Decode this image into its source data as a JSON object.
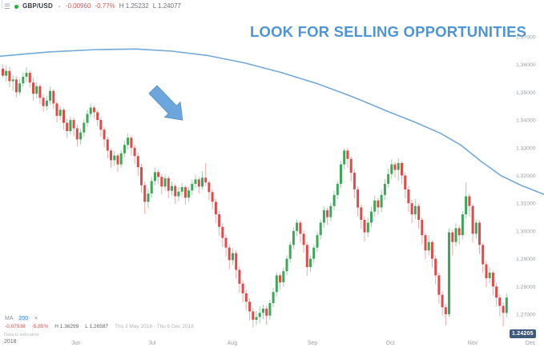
{
  "icons": {
    "menu": "☰",
    "chevron_down": "⌄",
    "close": "✕"
  },
  "header": {
    "symbol": "GBP/USD",
    "change": "-0.00960",
    "change_pct": "-0.77%",
    "session_high": "H 1.25232",
    "session_low": "L 1.24077"
  },
  "annotation": {
    "title": "LOOK FOR SELLING OPPORTUNITIES",
    "arrow_direction": "down-right"
  },
  "indicator_legend": {
    "name": "MA",
    "period": "200",
    "change": "-0.07938",
    "change_pct": "-5.85%",
    "range_high": "H 1.36299",
    "range_low": "L 1.26587",
    "date_range": "Thu 3 May 2018 - Thu 6 Dec 2018"
  },
  "price_badge": "1.24205",
  "footnote": "Data is indicative",
  "colors": {
    "bull": "#3ba758",
    "bear": "#e24a4a",
    "bull_wick": "#9bd2a4",
    "bear_wick": "#f2a6a8",
    "ma_line": "#72a9d8",
    "accent_blue": "#4f94d4",
    "arrow_fill": "#6ca6dd",
    "arrow_stroke": "#5d95c8",
    "badge_bg": "#3f5a7d",
    "axis_text": "#9ba1a8",
    "negative_text": "#e25050"
  },
  "x_axis": {
    "year": "2018",
    "months": [
      {
        "label": "Jun",
        "x": 95
      },
      {
        "label": "Jul",
        "x": 190
      },
      {
        "label": "Aug",
        "x": 290
      },
      {
        "label": "Sep",
        "x": 390
      },
      {
        "label": "Oct",
        "x": 487
      },
      {
        "label": "Nov",
        "x": 590
      },
      {
        "label": "Dec",
        "x": 662
      }
    ]
  },
  "y_axis": {
    "ticks": [
      {
        "label": "1.37000",
        "value": 1.37
      },
      {
        "label": "1.36000",
        "value": 1.36
      },
      {
        "label": "1.35000",
        "value": 1.35
      },
      {
        "label": "1.34000",
        "value": 1.34
      },
      {
        "label": "1.33000",
        "value": 1.33
      },
      {
        "label": "1.32000",
        "value": 1.32
      },
      {
        "label": "1.31000",
        "value": 1.31
      },
      {
        "label": "1.30000",
        "value": 1.3
      },
      {
        "label": "1.29000",
        "value": 1.29
      },
      {
        "label": "1.28000",
        "value": 1.28
      },
      {
        "label": "1.27000",
        "value": 1.27
      }
    ]
  },
  "chart_data": {
    "type": "candlestick",
    "symbol": "GBP/USD",
    "timeframe": "daily",
    "visible_range": "3 May 2018 - 6 Dec 2018",
    "ylim": [
      1.2625,
      1.3755
    ],
    "grid": false,
    "mapping": {
      "y_top": 46,
      "y_bottom": 393,
      "price_top": 1.37,
      "price_bottom": 1.27,
      "x0": 2,
      "dx": 4.22,
      "body_w": 3
    },
    "candles": [
      [
        1.3585,
        1.36,
        1.3552,
        1.356
      ],
      [
        1.356,
        1.3598,
        1.354,
        1.3577
      ],
      [
        1.3577,
        1.3592,
        1.3518,
        1.354
      ],
      [
        1.354,
        1.3562,
        1.3505,
        1.3546
      ],
      [
        1.3546,
        1.3558,
        1.3482,
        1.35
      ],
      [
        1.35,
        1.3548,
        1.349,
        1.3532
      ],
      [
        1.3532,
        1.3572,
        1.352,
        1.3556
      ],
      [
        1.3556,
        1.359,
        1.3538,
        1.357
      ],
      [
        1.357,
        1.3578,
        1.3516,
        1.3535
      ],
      [
        1.3535,
        1.3552,
        1.347,
        1.3495
      ],
      [
        1.3495,
        1.3536,
        1.3478,
        1.3522
      ],
      [
        1.3522,
        1.353,
        1.3458,
        1.348
      ],
      [
        1.348,
        1.3492,
        1.343,
        1.345
      ],
      [
        1.345,
        1.3488,
        1.3435,
        1.347
      ],
      [
        1.347,
        1.352,
        1.3455,
        1.3505
      ],
      [
        1.3505,
        1.3512,
        1.344,
        1.346
      ],
      [
        1.346,
        1.3468,
        1.3392,
        1.3415
      ],
      [
        1.3415,
        1.345,
        1.34,
        1.3437
      ],
      [
        1.3437,
        1.3444,
        1.3365,
        1.339
      ],
      [
        1.339,
        1.3405,
        1.3335,
        1.336
      ],
      [
        1.336,
        1.3412,
        1.3348,
        1.34
      ],
      [
        1.34,
        1.3408,
        1.3342,
        1.337
      ],
      [
        1.337,
        1.3382,
        1.3305,
        1.333
      ],
      [
        1.333,
        1.3368,
        1.3312,
        1.3355
      ],
      [
        1.3355,
        1.3402,
        1.334,
        1.339
      ],
      [
        1.339,
        1.3438,
        1.3375,
        1.3422
      ],
      [
        1.3422,
        1.346,
        1.3408,
        1.3445
      ],
      [
        1.3445,
        1.3452,
        1.3405,
        1.3428
      ],
      [
        1.3428,
        1.3436,
        1.3378,
        1.34
      ],
      [
        1.34,
        1.341,
        1.334,
        1.3365
      ],
      [
        1.3365,
        1.3375,
        1.3302,
        1.333
      ],
      [
        1.333,
        1.334,
        1.3262,
        1.329
      ],
      [
        1.329,
        1.3298,
        1.3228,
        1.3255
      ],
      [
        1.3255,
        1.3288,
        1.3235,
        1.3272
      ],
      [
        1.3272,
        1.328,
        1.3212,
        1.324
      ],
      [
        1.324,
        1.3292,
        1.3228,
        1.328
      ],
      [
        1.328,
        1.3325,
        1.3265,
        1.331
      ],
      [
        1.331,
        1.3352,
        1.3295,
        1.3336
      ],
      [
        1.3336,
        1.3345,
        1.3272,
        1.33
      ],
      [
        1.33,
        1.3312,
        1.3242,
        1.327
      ],
      [
        1.327,
        1.3282,
        1.3198,
        1.323
      ],
      [
        1.323,
        1.3242,
        1.3138,
        1.3165
      ],
      [
        1.3165,
        1.3178,
        1.3062,
        1.3105
      ],
      [
        1.3105,
        1.3152,
        1.3082,
        1.3135
      ],
      [
        1.3135,
        1.3195,
        1.312,
        1.318
      ],
      [
        1.318,
        1.3228,
        1.3165,
        1.3212
      ],
      [
        1.3212,
        1.3222,
        1.3168,
        1.3195
      ],
      [
        1.3195,
        1.3205,
        1.3132,
        1.316
      ],
      [
        1.316,
        1.3202,
        1.3145,
        1.319
      ],
      [
        1.319,
        1.3198,
        1.3118,
        1.3145
      ],
      [
        1.3145,
        1.3178,
        1.3128,
        1.3162
      ],
      [
        1.3162,
        1.317,
        1.3098,
        1.3125
      ],
      [
        1.3125,
        1.3158,
        1.3108,
        1.3142
      ],
      [
        1.3142,
        1.3172,
        1.3125,
        1.3158
      ],
      [
        1.3158,
        1.3165,
        1.3095,
        1.312
      ],
      [
        1.312,
        1.316,
        1.3105,
        1.3146
      ],
      [
        1.3146,
        1.3185,
        1.313,
        1.317
      ],
      [
        1.317,
        1.3202,
        1.3155,
        1.3186
      ],
      [
        1.3186,
        1.3195,
        1.3135,
        1.316
      ],
      [
        1.316,
        1.3215,
        1.3148,
        1.3192
      ],
      [
        1.3192,
        1.3245,
        1.3162,
        1.3175
      ],
      [
        1.3175,
        1.3182,
        1.3112,
        1.314
      ],
      [
        1.314,
        1.315,
        1.3078,
        1.3105
      ],
      [
        1.3105,
        1.3115,
        1.3028,
        1.306
      ],
      [
        1.306,
        1.3072,
        1.2982,
        1.3015
      ],
      [
        1.3015,
        1.3028,
        1.2942,
        1.2975
      ],
      [
        1.2975,
        1.2988,
        1.2908,
        1.294
      ],
      [
        1.294,
        1.2952,
        1.2862,
        1.2895
      ],
      [
        1.2895,
        1.2938,
        1.2878,
        1.292
      ],
      [
        1.292,
        1.293,
        1.2828,
        1.286
      ],
      [
        1.286,
        1.2872,
        1.2778,
        1.281
      ],
      [
        1.281,
        1.2822,
        1.2742,
        1.2775
      ],
      [
        1.2775,
        1.2788,
        1.2712,
        1.2745
      ],
      [
        1.2745,
        1.2758,
        1.2678,
        1.271
      ],
      [
        1.271,
        1.2722,
        1.2652,
        1.268
      ],
      [
        1.268,
        1.2712,
        1.2662,
        1.269
      ],
      [
        1.269,
        1.2728,
        1.2668,
        1.2705
      ],
      [
        1.2705,
        1.2735,
        1.2682,
        1.272
      ],
      [
        1.272,
        1.273,
        1.2662,
        1.2695
      ],
      [
        1.2695,
        1.2752,
        1.268,
        1.274
      ],
      [
        1.274,
        1.2795,
        1.2725,
        1.278
      ],
      [
        1.278,
        1.2852,
        1.2765,
        1.284
      ],
      [
        1.284,
        1.285,
        1.2788,
        1.2815
      ],
      [
        1.2815,
        1.2868,
        1.2798,
        1.2855
      ],
      [
        1.2855,
        1.2912,
        1.284,
        1.29
      ],
      [
        1.29,
        1.2962,
        1.2885,
        1.295
      ],
      [
        1.295,
        1.3012,
        1.2935,
        1.3
      ],
      [
        1.3,
        1.3042,
        1.2982,
        1.303
      ],
      [
        1.303,
        1.3038,
        1.2958,
        1.299
      ],
      [
        1.299,
        1.3,
        1.2922,
        1.295
      ],
      [
        1.295,
        1.296,
        1.2838,
        1.287
      ],
      [
        1.287,
        1.2912,
        1.2852,
        1.29
      ],
      [
        1.29,
        1.2952,
        1.2885,
        1.294
      ],
      [
        1.294,
        1.2998,
        1.2925,
        1.2985
      ],
      [
        1.2985,
        1.3042,
        1.2968,
        1.303
      ],
      [
        1.303,
        1.3088,
        1.3012,
        1.3075
      ],
      [
        1.3075,
        1.3085,
        1.3022,
        1.305
      ],
      [
        1.305,
        1.3102,
        1.3035,
        1.309
      ],
      [
        1.309,
        1.3145,
        1.3075,
        1.313
      ],
      [
        1.313,
        1.3182,
        1.3115,
        1.317
      ],
      [
        1.317,
        1.3252,
        1.3155,
        1.324
      ],
      [
        1.324,
        1.3298,
        1.3222,
        1.329
      ],
      [
        1.329,
        1.33,
        1.3228,
        1.326
      ],
      [
        1.326,
        1.3268,
        1.3178,
        1.321
      ],
      [
        1.321,
        1.3222,
        1.3118,
        1.315
      ],
      [
        1.315,
        1.3162,
        1.3052,
        1.3085
      ],
      [
        1.3085,
        1.3095,
        1.3008,
        1.304
      ],
      [
        1.304,
        1.3052,
        1.2962,
        1.2995
      ],
      [
        1.2995,
        1.3048,
        1.2978,
        1.303
      ],
      [
        1.303,
        1.3088,
        1.3015,
        1.307
      ],
      [
        1.307,
        1.3128,
        1.3052,
        1.311
      ],
      [
        1.311,
        1.312,
        1.3058,
        1.3085
      ],
      [
        1.3085,
        1.3148,
        1.3068,
        1.313
      ],
      [
        1.313,
        1.3188,
        1.3112,
        1.317
      ],
      [
        1.317,
        1.3225,
        1.3155,
        1.3205
      ],
      [
        1.3205,
        1.3258,
        1.3188,
        1.324
      ],
      [
        1.324,
        1.3248,
        1.3192,
        1.322
      ],
      [
        1.322,
        1.3262,
        1.318,
        1.3245
      ],
      [
        1.3245,
        1.3252,
        1.3168,
        1.32
      ],
      [
        1.32,
        1.321,
        1.3118,
        1.315
      ],
      [
        1.315,
        1.3162,
        1.3068,
        1.31
      ],
      [
        1.31,
        1.3112,
        1.3028,
        1.306
      ],
      [
        1.306,
        1.3115,
        1.3042,
        1.309
      ],
      [
        1.309,
        1.3098,
        1.3008,
        1.304
      ],
      [
        1.304,
        1.305,
        1.2952,
        1.2985
      ],
      [
        1.2985,
        1.2995,
        1.2898,
        1.293
      ],
      [
        1.293,
        1.2985,
        1.2912,
        1.296
      ],
      [
        1.296,
        1.2968,
        1.2868,
        1.29
      ],
      [
        1.29,
        1.2912,
        1.2808,
        1.284
      ],
      [
        1.284,
        1.285,
        1.2738,
        1.277
      ],
      [
        1.277,
        1.2782,
        1.2695,
        1.2725
      ],
      [
        1.2725,
        1.2738,
        1.266,
        1.27
      ],
      [
        1.27,
        1.301,
        1.269,
        1.2995
      ],
      [
        1.2995,
        1.3005,
        1.2912,
        1.296
      ],
      [
        1.296,
        1.3028,
        1.2945,
        1.301
      ],
      [
        1.301,
        1.302,
        1.2952,
        1.2985
      ],
      [
        1.2985,
        1.3072,
        1.297,
        1.306
      ],
      [
        1.306,
        1.3175,
        1.3045,
        1.3125
      ],
      [
        1.3125,
        1.3135,
        1.3052,
        1.309
      ],
      [
        1.309,
        1.3098,
        1.2958,
        1.299
      ],
      [
        1.299,
        1.3042,
        1.2972,
        1.303
      ],
      [
        1.303,
        1.3038,
        1.2918,
        1.295
      ],
      [
        1.295,
        1.2958,
        1.2848,
        1.288
      ],
      [
        1.288,
        1.2892,
        1.2798,
        1.283
      ],
      [
        1.283,
        1.2868,
        1.2812,
        1.285
      ],
      [
        1.285,
        1.2858,
        1.2768,
        1.28
      ],
      [
        1.28,
        1.2812,
        1.2728,
        1.276
      ],
      [
        1.276,
        1.2772,
        1.2692,
        1.273
      ],
      [
        1.273,
        1.2742,
        1.2655,
        1.2705
      ],
      [
        1.2705,
        1.2775,
        1.2688,
        1.276
      ]
    ],
    "overlays": [
      {
        "name": "MA 200",
        "type": "line",
        "points_x_price": [
          [
            0,
            1.363
          ],
          [
            60,
            1.3645
          ],
          [
            120,
            1.3654
          ],
          [
            170,
            1.3656
          ],
          [
            215,
            1.3648
          ],
          [
            260,
            1.3632
          ],
          [
            305,
            1.3606
          ],
          [
            350,
            1.3572
          ],
          [
            395,
            1.3532
          ],
          [
            440,
            1.3484
          ],
          [
            485,
            1.343
          ],
          [
            520,
            1.339
          ],
          [
            550,
            1.3352
          ],
          [
            575,
            1.331
          ],
          [
            600,
            1.3252
          ],
          [
            625,
            1.32
          ],
          [
            650,
            1.3165
          ],
          [
            679,
            1.3132
          ]
        ]
      }
    ]
  }
}
